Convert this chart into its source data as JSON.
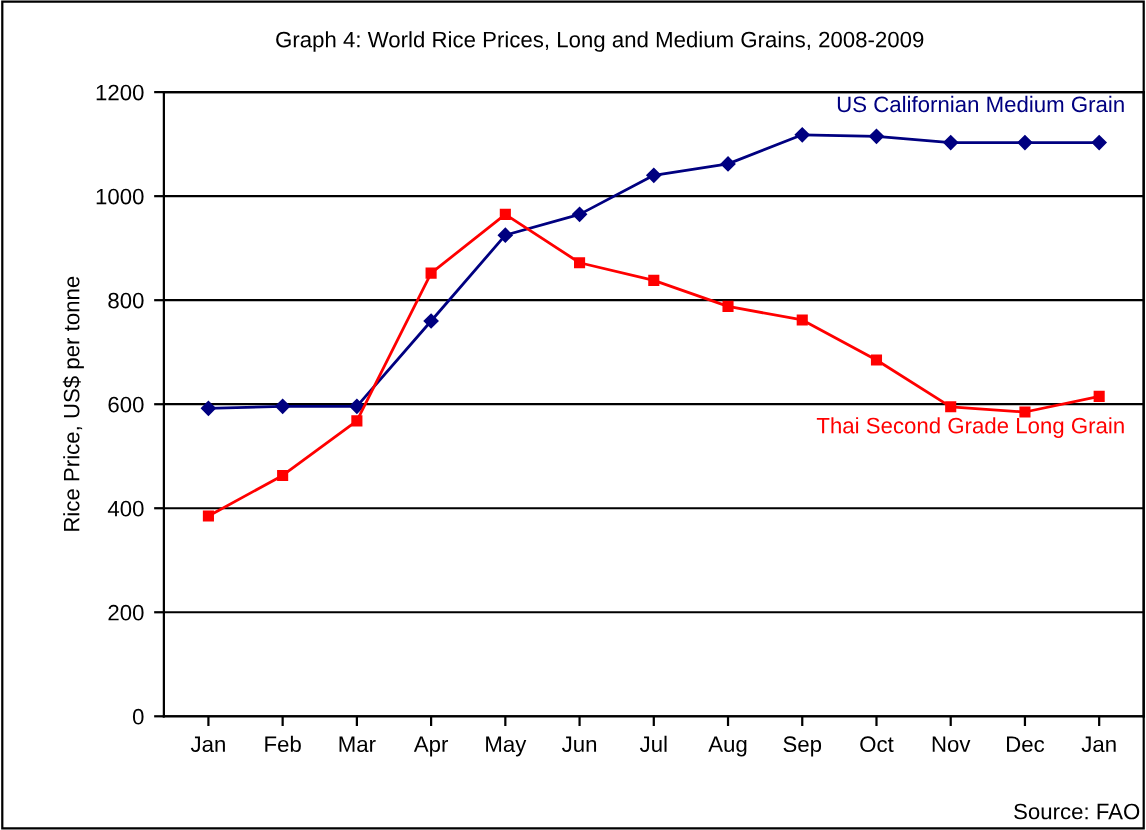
{
  "chart_data": {
    "type": "line",
    "title": "Graph 4: World Rice Prices, Long and Medium Grains, 2008-2009",
    "ylabel": "Rice Price, US$ per tonne",
    "categories": [
      "Jan",
      "Feb",
      "Mar",
      "Apr",
      "May",
      "Jun",
      "Jul",
      "Aug",
      "Sep",
      "Oct",
      "Nov",
      "Dec",
      "Jan"
    ],
    "series": [
      {
        "name": "US Californian Medium Grain",
        "color": "#000080",
        "marker": "diamond",
        "values": [
          592,
          596,
          596,
          760,
          925,
          965,
          1040,
          1062,
          1118,
          1115,
          1103,
          1103,
          1103
        ]
      },
      {
        "name": "Thai Second Grade Long Grain",
        "color": "#ff0000",
        "marker": "square",
        "values": [
          385,
          463,
          568,
          852,
          965,
          872,
          838,
          788,
          762,
          685,
          595,
          585,
          615
        ]
      }
    ],
    "ylim": [
      0,
      1200
    ],
    "yticks": [
      0,
      200,
      400,
      600,
      800,
      1000,
      1200
    ],
    "grid": "y",
    "legend": false,
    "annotations": [
      "Source: FAO"
    ]
  }
}
